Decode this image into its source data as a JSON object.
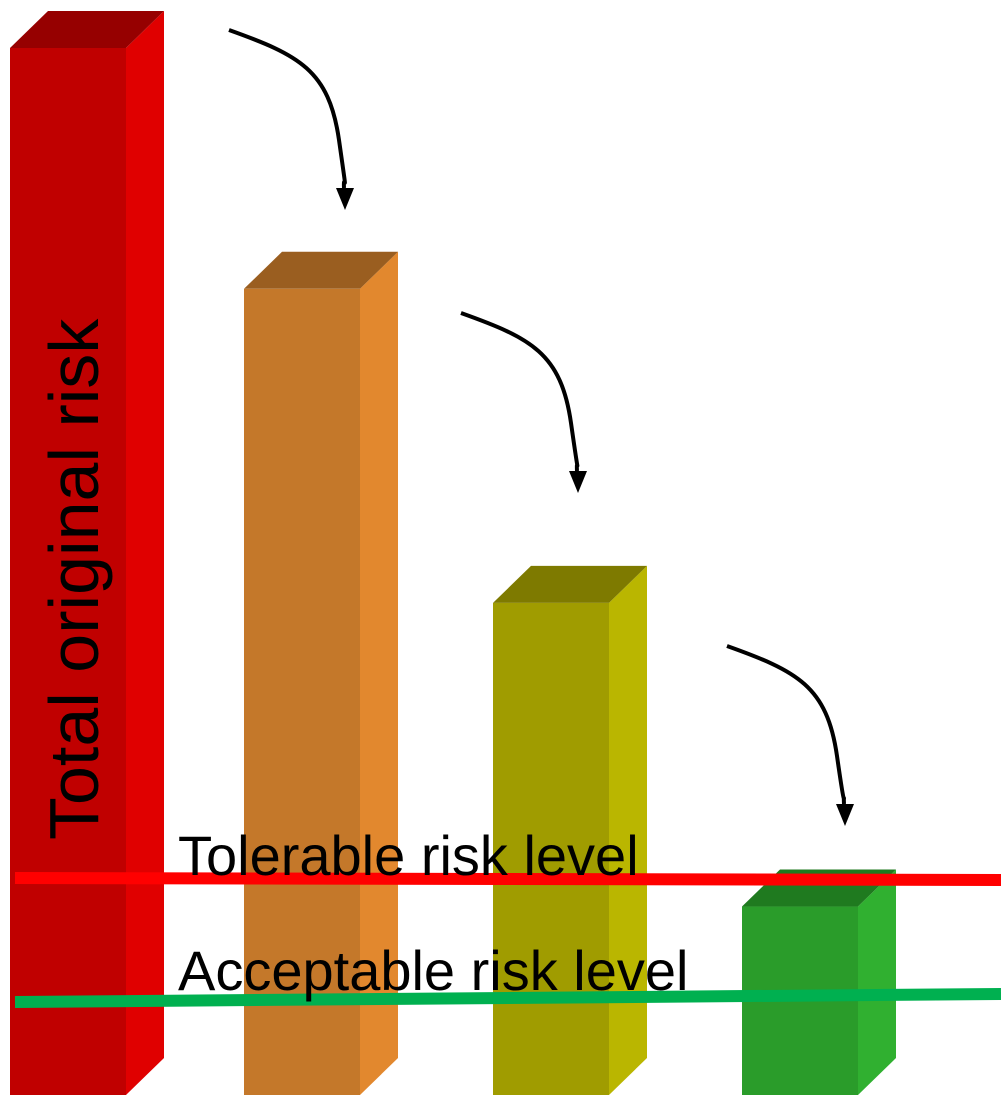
{
  "chart_data": {
    "type": "bar",
    "title": "",
    "xlabel": "",
    "ylabel": "",
    "categories": [
      "",
      "",
      "",
      ""
    ],
    "values": [
      100,
      77,
      47,
      18
    ],
    "ylim": [
      0,
      100
    ],
    "bar_label": "Total original risk",
    "bar_colors": [
      {
        "front": "#c00000",
        "side": "#e00000",
        "top": "#960000"
      },
      {
        "front": "#c4782a",
        "side": "#e2882e",
        "top": "#9a5e20"
      },
      {
        "front": "#a09c00",
        "side": "#bab600",
        "top": "#7e7a00"
      },
      {
        "front": "#2a9c2a",
        "side": "#30b030",
        "top": "#1f7a1f"
      }
    ],
    "thresholds": [
      {
        "name": "Tolerable risk level",
        "value": 21,
        "color": "#ff0000"
      },
      {
        "name": "Acceptable risk level",
        "value": 8.5,
        "color": "#00b050"
      }
    ],
    "arrows": "reduction arrows between consecutive bars",
    "grid": false,
    "legend": "none"
  }
}
